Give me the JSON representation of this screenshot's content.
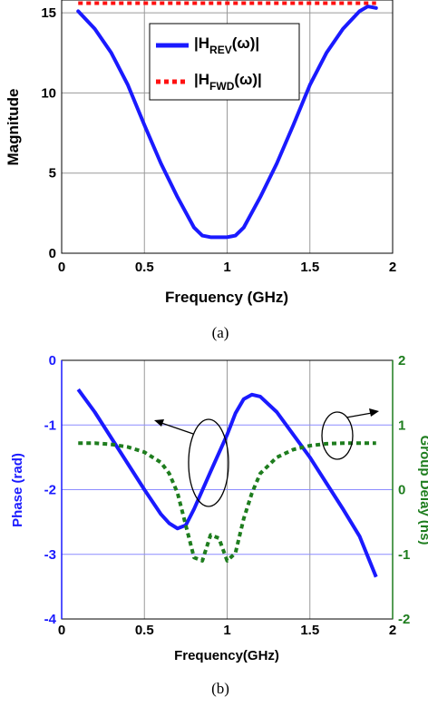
{
  "colors": {
    "blue": "#1a1aff",
    "red": "#ff1010",
    "green": "#1e7d1e",
    "grid": "#9a9a9a",
    "bluegrid": "#8c8cff"
  },
  "chart_data": [
    {
      "type": "line",
      "caption": "(a)",
      "xlabel": "Frequency (GHz)",
      "ylabel": "Magnitude",
      "xlim": [
        0,
        2
      ],
      "ylim": [
        0,
        15.8
      ],
      "xticks": [
        0,
        0.5,
        1,
        1.5,
        2
      ],
      "xtick_labels": [
        "0",
        "0.5",
        "1",
        "1.5",
        "2"
      ],
      "yticks": [
        0,
        5,
        10,
        15
      ],
      "ytick_labels": [
        "0",
        "5",
        "10",
        "15"
      ],
      "grid": true,
      "legend_position": "upper-center",
      "series": [
        {
          "name_main": "|H",
          "name_sub": "REV",
          "name_tail": "(ω)|",
          "color": "#1a1aff",
          "style": "solid",
          "x": [
            0.1,
            0.2,
            0.3,
            0.4,
            0.5,
            0.6,
            0.7,
            0.8,
            0.85,
            0.9,
            0.95,
            1.0,
            1.05,
            1.1,
            1.2,
            1.3,
            1.4,
            1.5,
            1.6,
            1.7,
            1.8,
            1.85,
            1.9
          ],
          "y": [
            15.1,
            14.0,
            12.5,
            10.5,
            8.0,
            5.6,
            3.5,
            1.6,
            1.1,
            1.0,
            1.0,
            1.0,
            1.1,
            1.6,
            3.5,
            5.6,
            8.0,
            10.5,
            12.5,
            14.0,
            15.1,
            15.4,
            15.3
          ]
        },
        {
          "name_main": "|H",
          "name_sub": "FWD",
          "name_tail": "(ω)|",
          "color": "#ff1010",
          "style": "dotted",
          "x": [
            0.1,
            1.9
          ],
          "y": [
            15.6,
            15.6
          ]
        }
      ]
    },
    {
      "type": "line",
      "caption": "(b)",
      "xlabel": "Frequency(GHz)",
      "ylabel_left": "Phase (rad)",
      "ylabel_right": "Group Delay (ns)",
      "xlim": [
        0,
        2
      ],
      "ylim_left": [
        -4,
        0
      ],
      "ylim_right": [
        -2,
        2
      ],
      "xticks": [
        0,
        0.5,
        1,
        1.5,
        2
      ],
      "xtick_labels": [
        "0",
        "0.5",
        "1",
        "1.5",
        "2"
      ],
      "yticks_left": [
        -4,
        -3,
        -2,
        -1,
        0
      ],
      "ytick_labels_left": [
        "-4",
        "-3",
        "-2",
        "-1",
        "0"
      ],
      "yticks_right": [
        -2,
        -1,
        0,
        1,
        2
      ],
      "ytick_labels_right": [
        "-2",
        "-1",
        "0",
        "1",
        "2"
      ],
      "grid": true,
      "series": [
        {
          "name": "Phase",
          "axis": "left",
          "color": "#1a1aff",
          "style": "solid",
          "x": [
            0.1,
            0.2,
            0.3,
            0.4,
            0.5,
            0.6,
            0.65,
            0.7,
            0.75,
            0.8,
            0.9,
            1.0,
            1.05,
            1.1,
            1.15,
            1.2,
            1.3,
            1.4,
            1.5,
            1.6,
            1.7,
            1.8,
            1.9
          ],
          "y": [
            -0.45,
            -0.8,
            -1.2,
            -1.6,
            -2.0,
            -2.38,
            -2.52,
            -2.6,
            -2.55,
            -2.3,
            -1.72,
            -1.15,
            -0.82,
            -0.6,
            -0.53,
            -0.56,
            -0.8,
            -1.15,
            -1.5,
            -1.9,
            -2.3,
            -2.72,
            -3.35
          ]
        },
        {
          "name": "Group Delay",
          "axis": "right",
          "color": "#1e7d1e",
          "style": "dotted",
          "x": [
            0.1,
            0.2,
            0.3,
            0.4,
            0.5,
            0.6,
            0.65,
            0.7,
            0.75,
            0.8,
            0.85,
            0.9,
            0.95,
            1.0,
            1.05,
            1.1,
            1.15,
            1.2,
            1.3,
            1.4,
            1.5,
            1.6,
            1.7,
            1.8,
            1.9
          ],
          "y": [
            0.72,
            0.72,
            0.7,
            0.66,
            0.58,
            0.42,
            0.25,
            -0.05,
            -0.55,
            -1.05,
            -1.1,
            -0.7,
            -0.75,
            -1.1,
            -0.98,
            -0.45,
            -0.05,
            0.25,
            0.5,
            0.62,
            0.68,
            0.71,
            0.72,
            0.72,
            0.72
          ]
        }
      ],
      "annotations": [
        {
          "type": "ellipse-arrow",
          "direction": "left",
          "target": "Phase"
        },
        {
          "type": "ellipse-arrow",
          "direction": "right",
          "target": "Group Delay"
        }
      ]
    }
  ]
}
